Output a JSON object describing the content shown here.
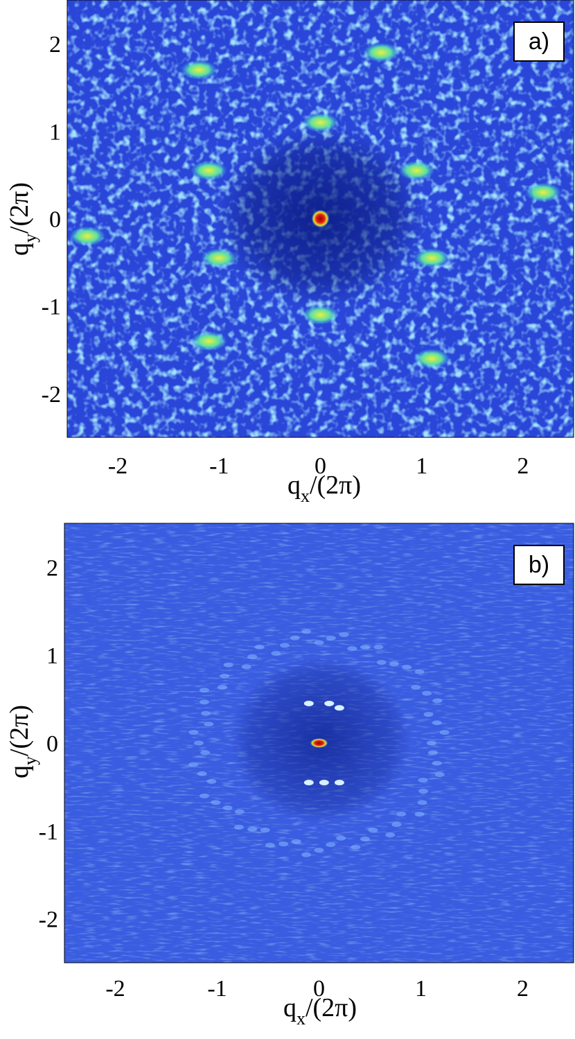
{
  "chart_data": [
    {
      "type": "heatmap",
      "panel_label": "a)",
      "xlabel": "q",
      "xlabel_sub": "x",
      "xlabel_rest": "/(2π)",
      "ylabel": "q",
      "ylabel_sub": "y",
      "ylabel_rest": "/(2π)",
      "xlim": [
        -2.5,
        2.5
      ],
      "ylim": [
        -2.5,
        2.5
      ],
      "xticks": [
        -2,
        -1,
        0,
        1,
        2
      ],
      "yticks": [
        2,
        1,
        0,
        -1,
        -2
      ],
      "xtick_labels": [
        "-2",
        "-1",
        "0",
        "1",
        "2"
      ],
      "ytick_labels": [
        "2",
        "1",
        "0",
        "-1",
        "-2"
      ],
      "background_color": "#2a46d8",
      "central_peak": {
        "qx": 0,
        "qy": 0,
        "color": "#c01010"
      },
      "bright_spots": [
        {
          "qx": 0.0,
          "qy": 1.1
        },
        {
          "qx": 0.95,
          "qy": 0.55
        },
        {
          "qx": 1.1,
          "qy": -0.45
        },
        {
          "qx": 0.0,
          "qy": -1.1
        },
        {
          "qx": -1.0,
          "qy": -0.45
        },
        {
          "qx": -1.1,
          "qy": 0.55
        },
        {
          "qx": -1.2,
          "qy": 1.7
        },
        {
          "qx": 0.6,
          "qy": 1.9
        },
        {
          "qx": 2.2,
          "qy": 0.3
        },
        {
          "qx": -2.3,
          "qy": -0.2
        },
        {
          "qx": 1.1,
          "qy": -1.6
        },
        {
          "qx": -1.1,
          "qy": -1.4
        }
      ]
    },
    {
      "type": "heatmap",
      "panel_label": "b)",
      "xlabel": "q",
      "xlabel_sub": "x",
      "xlabel_rest": "/(2π)",
      "ylabel": "q",
      "ylabel_sub": "y",
      "ylabel_rest": "/(2π)",
      "xlim": [
        -2.5,
        2.5
      ],
      "ylim": [
        -2.5,
        2.5
      ],
      "xticks": [
        -2,
        -1,
        0,
        1,
        2
      ],
      "yticks": [
        2,
        1,
        0,
        -1,
        -2
      ],
      "xtick_labels": [
        "-2",
        "-1",
        "0",
        "1",
        "2"
      ],
      "ytick_labels": [
        "2",
        "1",
        "0",
        "-1",
        "-2"
      ],
      "background_color": "#3a5ce0",
      "central_peak": {
        "qx": 0,
        "qy": 0,
        "color": "#c01010"
      },
      "ring_radius": 1.2,
      "inner_spots": [
        {
          "qx": -0.1,
          "qy": 0.45
        },
        {
          "qx": 0.1,
          "qy": 0.45
        },
        {
          "qx": 0.2,
          "qy": 0.4
        },
        {
          "qx": -0.1,
          "qy": -0.45
        },
        {
          "qx": 0.05,
          "qy": -0.45
        },
        {
          "qx": 0.2,
          "qy": -0.45
        }
      ]
    }
  ]
}
